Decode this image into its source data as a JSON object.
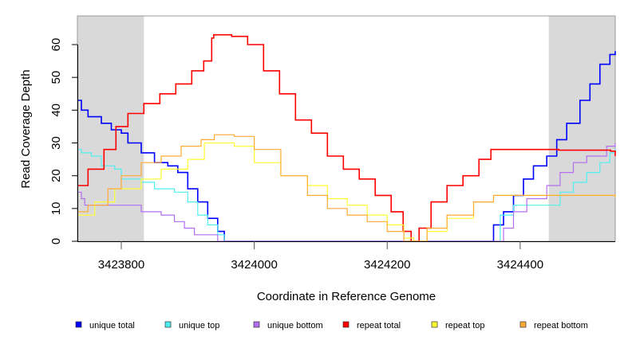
{
  "chart_data": {
    "type": "line",
    "title": "",
    "xlabel": "Coordinate in Reference Genome",
    "ylabel": "Read Coverage Depth",
    "xlim": [
      3423734,
      3424543
    ],
    "ylim": [
      0,
      68
    ],
    "xticks": [
      3423800,
      3424000,
      3424200,
      3424400
    ],
    "yticks": [
      0,
      10,
      20,
      30,
      40,
      50,
      60
    ],
    "shaded_regions": [
      [
        3423734,
        3423834
      ],
      [
        3424443,
        3424543
      ]
    ],
    "shade_color": "#d9d9d9",
    "legend_position": "bottom",
    "series": [
      {
        "name": "unique total",
        "color": "#0000ff",
        "width": 1.6,
        "points": [
          [
            3423734,
            43
          ],
          [
            3423740,
            40
          ],
          [
            3423750,
            38
          ],
          [
            3423770,
            36
          ],
          [
            3423785,
            34
          ],
          [
            3423800,
            33
          ],
          [
            3423810,
            30
          ],
          [
            3423830,
            27
          ],
          [
            3423850,
            24
          ],
          [
            3423870,
            23
          ],
          [
            3423885,
            21
          ],
          [
            3423900,
            16
          ],
          [
            3423915,
            12
          ],
          [
            3423930,
            7
          ],
          [
            3423945,
            3
          ],
          [
            3423955,
            0
          ],
          [
            3424352,
            0
          ],
          [
            3424360,
            5
          ],
          [
            3424375,
            9
          ],
          [
            3424390,
            14
          ],
          [
            3424405,
            19
          ],
          [
            3424420,
            23
          ],
          [
            3424440,
            26
          ],
          [
            3424455,
            31
          ],
          [
            3424470,
            36
          ],
          [
            3424490,
            43
          ],
          [
            3424505,
            48
          ],
          [
            3424520,
            54
          ],
          [
            3424535,
            57
          ],
          [
            3424543,
            58
          ]
        ]
      },
      {
        "name": "unique top",
        "color": "#4ff0f0",
        "width": 1.2,
        "points": [
          [
            3423734,
            28
          ],
          [
            3423740,
            27
          ],
          [
            3423755,
            26
          ],
          [
            3423770,
            23
          ],
          [
            3423790,
            22
          ],
          [
            3423800,
            19
          ],
          [
            3423830,
            18
          ],
          [
            3423850,
            16
          ],
          [
            3423880,
            15
          ],
          [
            3423900,
            12
          ],
          [
            3423915,
            8
          ],
          [
            3423930,
            5
          ],
          [
            3423945,
            2
          ],
          [
            3423955,
            0
          ],
          [
            3424355,
            0
          ],
          [
            3424370,
            8
          ],
          [
            3424390,
            11
          ],
          [
            3424440,
            11
          ],
          [
            3424460,
            15
          ],
          [
            3424480,
            18
          ],
          [
            3424500,
            21
          ],
          [
            3424520,
            24
          ],
          [
            3424535,
            27
          ],
          [
            3424543,
            28
          ]
        ]
      },
      {
        "name": "unique bottom",
        "color": "#b36ef0",
        "width": 1.2,
        "points": [
          [
            3423734,
            15
          ],
          [
            3423740,
            13
          ],
          [
            3423745,
            11
          ],
          [
            3423800,
            11
          ],
          [
            3423830,
            9
          ],
          [
            3423860,
            8
          ],
          [
            3423880,
            6
          ],
          [
            3423895,
            4
          ],
          [
            3423910,
            2
          ],
          [
            3423940,
            2
          ],
          [
            3423945,
            0
          ],
          [
            3424360,
            0
          ],
          [
            3424375,
            4
          ],
          [
            3424390,
            9
          ],
          [
            3424410,
            13
          ],
          [
            3424440,
            17
          ],
          [
            3424460,
            21
          ],
          [
            3424480,
            24
          ],
          [
            3424500,
            26
          ],
          [
            3424530,
            29
          ],
          [
            3424543,
            30
          ]
        ]
      },
      {
        "name": "repeat total",
        "color": "#ff0000",
        "width": 1.6,
        "points": [
          [
            3423734,
            17
          ],
          [
            3423750,
            22
          ],
          [
            3423774,
            28
          ],
          [
            3423792,
            35
          ],
          [
            3423810,
            39
          ],
          [
            3423834,
            42
          ],
          [
            3423858,
            45
          ],
          [
            3423882,
            48
          ],
          [
            3423906,
            52
          ],
          [
            3423924,
            55
          ],
          [
            3423936,
            62
          ],
          [
            3423939,
            63
          ],
          [
            3423966,
            62.5
          ],
          [
            3423990,
            60
          ],
          [
            3424014,
            52
          ],
          [
            3424038,
            45
          ],
          [
            3424062,
            37
          ],
          [
            3424086,
            33
          ],
          [
            3424110,
            26
          ],
          [
            3424134,
            22
          ],
          [
            3424158,
            19
          ],
          [
            3424182,
            14
          ],
          [
            3424206,
            9
          ],
          [
            3424224,
            3
          ],
          [
            3424236,
            0
          ],
          [
            3424248,
            4
          ],
          [
            3424266,
            12
          ],
          [
            3424290,
            17
          ],
          [
            3424314,
            20
          ],
          [
            3424338,
            25
          ],
          [
            3424356,
            28
          ],
          [
            3424398,
            28
          ],
          [
            3424458,
            27.8
          ],
          [
            3424536,
            27.5
          ],
          [
            3424543,
            26
          ]
        ]
      },
      {
        "name": "repeat top",
        "color": "#ffff33",
        "width": 1.2,
        "points": [
          [
            3423734,
            8
          ],
          [
            3423760,
            12
          ],
          [
            3423790,
            16
          ],
          [
            3423830,
            19
          ],
          [
            3423860,
            22
          ],
          [
            3423900,
            25
          ],
          [
            3423925,
            30
          ],
          [
            3423940,
            30
          ],
          [
            3423970,
            29
          ],
          [
            3424000,
            24
          ],
          [
            3424040,
            20
          ],
          [
            3424080,
            17
          ],
          [
            3424110,
            13
          ],
          [
            3424140,
            11
          ],
          [
            3424170,
            8
          ],
          [
            3424200,
            5
          ],
          [
            3424225,
            1
          ],
          [
            3424240,
            0
          ],
          [
            3424260,
            3
          ],
          [
            3424290,
            7
          ],
          [
            3424330,
            12
          ],
          [
            3424360,
            14
          ],
          [
            3424440,
            14
          ],
          [
            3424543,
            13.5
          ]
        ]
      },
      {
        "name": "repeat bottom",
        "color": "#ffaa33",
        "width": 1.2,
        "points": [
          [
            3423734,
            9
          ],
          [
            3423750,
            11
          ],
          [
            3423780,
            16
          ],
          [
            3423800,
            20
          ],
          [
            3423830,
            24
          ],
          [
            3423860,
            26
          ],
          [
            3423890,
            29
          ],
          [
            3423920,
            31
          ],
          [
            3423940,
            32.5
          ],
          [
            3423970,
            32
          ],
          [
            3424000,
            28
          ],
          [
            3424040,
            20
          ],
          [
            3424080,
            14
          ],
          [
            3424110,
            10
          ],
          [
            3424140,
            8
          ],
          [
            3424170,
            6
          ],
          [
            3424200,
            3
          ],
          [
            3424225,
            0
          ],
          [
            3424240,
            0
          ],
          [
            3424260,
            4
          ],
          [
            3424290,
            8
          ],
          [
            3424330,
            12
          ],
          [
            3424360,
            14
          ],
          [
            3424440,
            14
          ],
          [
            3424543,
            13.5
          ]
        ]
      }
    ]
  }
}
